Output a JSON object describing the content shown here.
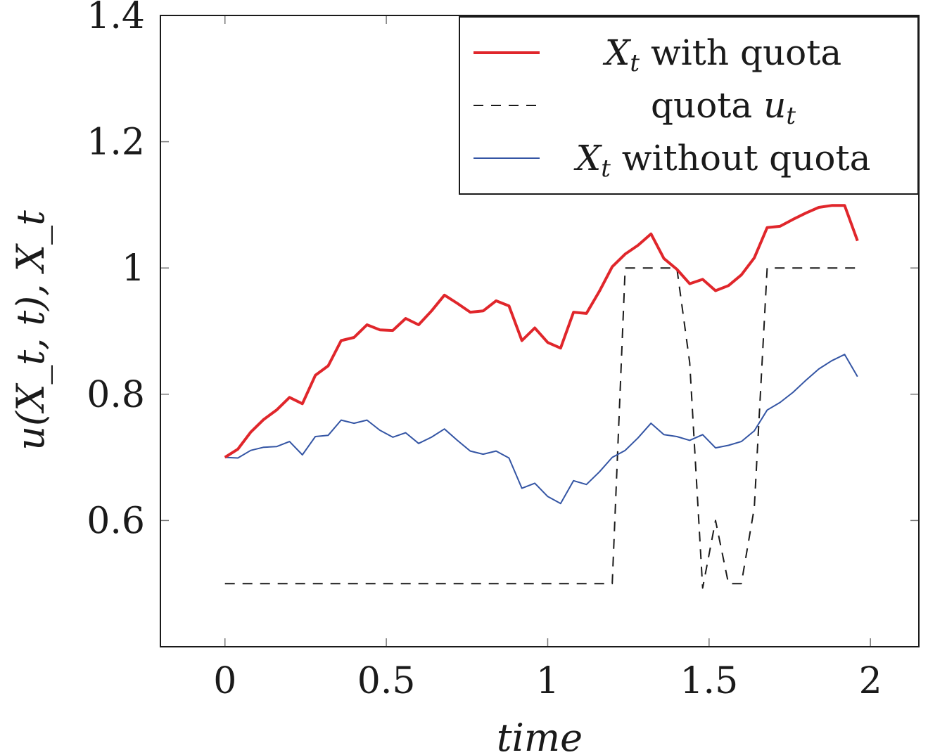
{
  "chart_data": {
    "type": "line",
    "xlabel": "time",
    "ylabel": "u(X_t, t),   X_t",
    "xlim": [
      -0.2,
      2.15
    ],
    "ylim": [
      0.4,
      1.4
    ],
    "xticks": [
      0,
      0.5,
      1,
      1.5,
      2
    ],
    "xtick_labels": [
      "0",
      "0.5",
      "1",
      "1.5",
      "2"
    ],
    "yticks": [
      0.6,
      0.8,
      1.0,
      1.2,
      1.4
    ],
    "ytick_labels": [
      "0.6",
      "0.8",
      "1",
      "1.2",
      "1.4"
    ],
    "legend_position": "top-right",
    "series": [
      {
        "name": "X_t with quota",
        "color": "#e0262b",
        "style": "solid-thick",
        "x": [
          0,
          0.04,
          0.08,
          0.12,
          0.16,
          0.2,
          0.24,
          0.28,
          0.32,
          0.36,
          0.4,
          0.44,
          0.48,
          0.52,
          0.56,
          0.6,
          0.64,
          0.68,
          0.72,
          0.76,
          0.8,
          0.84,
          0.88,
          0.92,
          0.96,
          1.0,
          1.04,
          1.08,
          1.12,
          1.16,
          1.2,
          1.24,
          1.28,
          1.32,
          1.36,
          1.4,
          1.44,
          1.48,
          1.52,
          1.56,
          1.6,
          1.64,
          1.68,
          1.72,
          1.76,
          1.8,
          1.84,
          1.88,
          1.92,
          1.96
        ],
        "y": [
          0.7,
          0.713,
          0.74,
          0.76,
          0.775,
          0.795,
          0.785,
          0.83,
          0.845,
          0.885,
          0.89,
          0.91,
          0.902,
          0.901,
          0.92,
          0.91,
          0.932,
          0.957,
          0.944,
          0.93,
          0.932,
          0.948,
          0.94,
          0.885,
          0.905,
          0.882,
          0.873,
          0.93,
          0.928,
          0.963,
          1.002,
          1.022,
          1.036,
          1.054,
          1.015,
          0.998,
          0.975,
          0.982,
          0.964,
          0.972,
          0.989,
          1.016,
          1.064,
          1.066,
          1.077,
          1.087,
          1.096,
          1.099,
          1.099,
          1.043
        ]
      },
      {
        "name": "quota u_t",
        "color": "#1a1a1a",
        "style": "dashed",
        "x": [
          0,
          0.1,
          0.2,
          0.3,
          0.4,
          0.5,
          0.6,
          0.7,
          0.8,
          0.9,
          1.0,
          1.1,
          1.2,
          1.24,
          1.28,
          1.32,
          1.36,
          1.4,
          1.44,
          1.48,
          1.52,
          1.56,
          1.6,
          1.64,
          1.68,
          1.72,
          1.76,
          1.8,
          1.84,
          1.88,
          1.92,
          1.96
        ],
        "y": [
          0.5,
          0.5,
          0.5,
          0.5,
          0.5,
          0.5,
          0.5,
          0.5,
          0.5,
          0.5,
          0.5,
          0.5,
          0.5,
          1.0,
          1.0,
          1.0,
          1.0,
          1.0,
          0.85,
          0.493,
          0.6,
          0.5,
          0.5,
          0.62,
          1.0,
          1.0,
          1.0,
          1.0,
          1.0,
          1.0,
          1.0,
          1.0
        ]
      },
      {
        "name": "X_t without quota",
        "color": "#3455a4",
        "style": "solid-thin",
        "x": [
          0,
          0.04,
          0.08,
          0.12,
          0.16,
          0.2,
          0.24,
          0.28,
          0.32,
          0.36,
          0.4,
          0.44,
          0.48,
          0.52,
          0.56,
          0.6,
          0.64,
          0.68,
          0.72,
          0.76,
          0.8,
          0.84,
          0.88,
          0.92,
          0.96,
          1.0,
          1.04,
          1.08,
          1.12,
          1.16,
          1.2,
          1.24,
          1.28,
          1.32,
          1.36,
          1.4,
          1.44,
          1.48,
          1.52,
          1.56,
          1.6,
          1.64,
          1.68,
          1.72,
          1.76,
          1.8,
          1.84,
          1.88,
          1.92,
          1.96
        ],
        "y": [
          0.7,
          0.699,
          0.711,
          0.716,
          0.717,
          0.725,
          0.704,
          0.733,
          0.735,
          0.759,
          0.754,
          0.759,
          0.743,
          0.732,
          0.739,
          0.722,
          0.732,
          0.745,
          0.727,
          0.71,
          0.705,
          0.71,
          0.699,
          0.651,
          0.659,
          0.638,
          0.627,
          0.663,
          0.657,
          0.677,
          0.7,
          0.711,
          0.731,
          0.754,
          0.736,
          0.733,
          0.727,
          0.736,
          0.715,
          0.719,
          0.725,
          0.742,
          0.775,
          0.787,
          0.803,
          0.822,
          0.84,
          0.853,
          0.863,
          0.828
        ]
      }
    ]
  }
}
